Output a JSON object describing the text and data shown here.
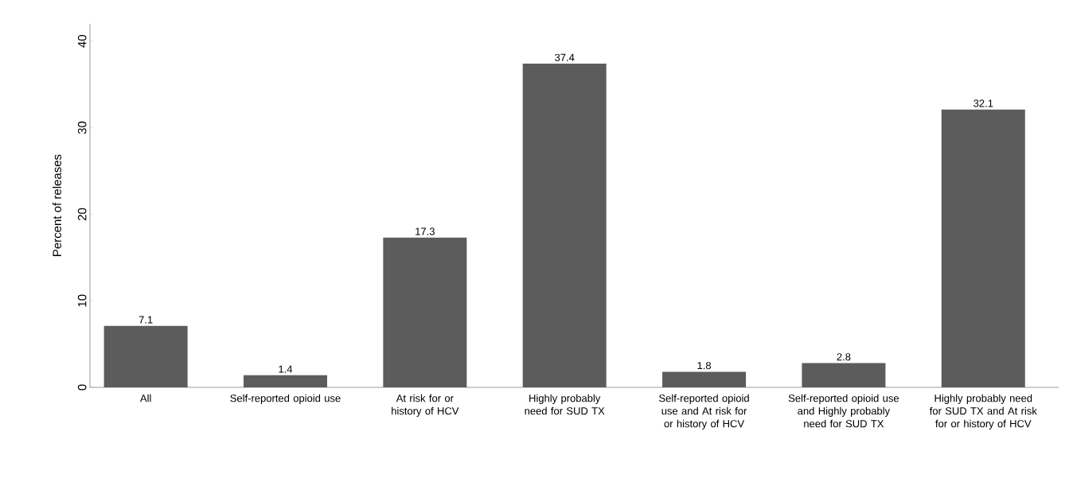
{
  "chart_data": {
    "type": "bar",
    "ylabel": "Percent of releases",
    "categories": [
      "All",
      "Self-reported opioid use",
      "At risk for or history of HCV",
      "Highly probably need for SUD TX",
      "Self-reported opioid use and At risk for or history of HCV",
      "Self-reported opioid use and Highly probably need for SUD TX",
      "Highly probably need for SUD TX and At risk for or history of HCV"
    ],
    "values": [
      7.1,
      1.4,
      17.3,
      37.4,
      1.8,
      2.8,
      32.1
    ],
    "color": "#5c5c5c",
    "ylim": [
      0,
      42
    ],
    "yticks": [
      0,
      10,
      20,
      30,
      40
    ],
    "data_labels": true
  }
}
